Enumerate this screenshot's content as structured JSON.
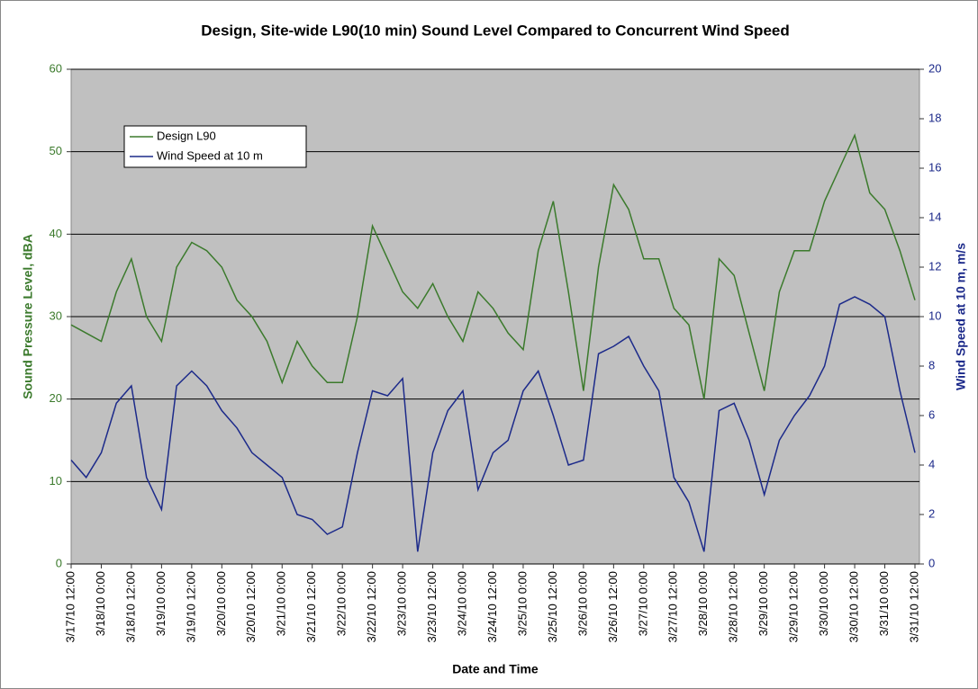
{
  "chart_data": {
    "type": "line",
    "title": "Design, Site-wide L90(10 min) Sound Level Compared to Concurrent Wind Speed",
    "x_label": "Date and Time",
    "y_label": "Sound Pressure Level, dBA",
    "y2_label": "Wind Speed at 10 m, m/s",
    "categories": [
      "3/17/10 12:00",
      null,
      "3/18/10 0:00",
      null,
      "3/18/10 12:00",
      null,
      "3/19/10 0:00",
      null,
      "3/19/10 12:00",
      null,
      "3/20/10 0:00",
      null,
      "3/20/10 12:00",
      null,
      "3/21/10 0:00",
      null,
      "3/21/10 12:00",
      null,
      "3/22/10 0:00",
      null,
      "3/22/10 12:00",
      null,
      "3/23/10 0:00",
      null,
      "3/23/10 12:00",
      null,
      "3/24/10 0:00",
      null,
      "3/24/10 12:00",
      null,
      "3/25/10 0:00",
      null,
      "3/25/10 12:00",
      null,
      "3/26/10 0:00",
      null,
      "3/26/10 12:00",
      null,
      "3/27/10 0:00",
      null,
      "3/27/10 12:00",
      null,
      "3/28/10 0:00",
      null,
      "3/28/10 12:00",
      null,
      "3/29/10 0:00",
      null,
      "3/29/10 12:00",
      null,
      "3/30/10 0:00",
      null,
      "3/30/10 12:00",
      null,
      "3/31/10 0:00",
      null,
      "3/31/10 12:00"
    ],
    "series": [
      {
        "name": "Design L90",
        "color": "#3b7a2c",
        "axis": "y",
        "values": [
          29,
          28,
          27,
          33,
          37,
          30,
          27,
          36,
          39,
          38,
          36,
          32,
          30,
          27,
          22,
          27,
          24,
          22,
          22,
          30,
          41,
          37,
          33,
          31,
          34,
          30,
          27,
          33,
          31,
          28,
          26,
          38,
          44,
          33,
          21,
          36,
          46,
          43,
          37,
          37,
          31,
          29,
          20,
          37,
          35,
          28,
          21,
          33,
          38,
          38,
          44,
          48,
          52,
          45,
          43,
          38,
          32
        ]
      },
      {
        "name": "Wind Speed at 10 m",
        "color": "#1c2a8a",
        "axis": "y2",
        "values": [
          4.2,
          3.5,
          4.5,
          6.5,
          7.2,
          3.5,
          2.2,
          7.2,
          7.8,
          7.2,
          6.2,
          5.5,
          4.5,
          4.0,
          3.5,
          2.0,
          1.8,
          1.2,
          1.5,
          4.5,
          7.0,
          6.8,
          7.5,
          0.5,
          4.5,
          6.2,
          7.0,
          3.0,
          4.5,
          5.0,
          7.0,
          7.8,
          6.0,
          4.0,
          4.2,
          8.5,
          8.8,
          9.2,
          8.0,
          7.0,
          3.5,
          2.5,
          0.5,
          6.2,
          6.5,
          5.0,
          2.8,
          5.0,
          6.0,
          6.8,
          8.0,
          10.5,
          10.8,
          10.5,
          10.0,
          7.0,
          4.5
        ]
      }
    ],
    "ylim": [
      0,
      60
    ],
    "yticks": [
      0,
      10,
      20,
      30,
      40,
      50,
      60
    ],
    "y2lim": [
      0,
      20
    ],
    "y2ticks": [
      0,
      2,
      4,
      6,
      8,
      10,
      12,
      14,
      16,
      18,
      20
    ],
    "grid": true,
    "legend": "upper left"
  }
}
